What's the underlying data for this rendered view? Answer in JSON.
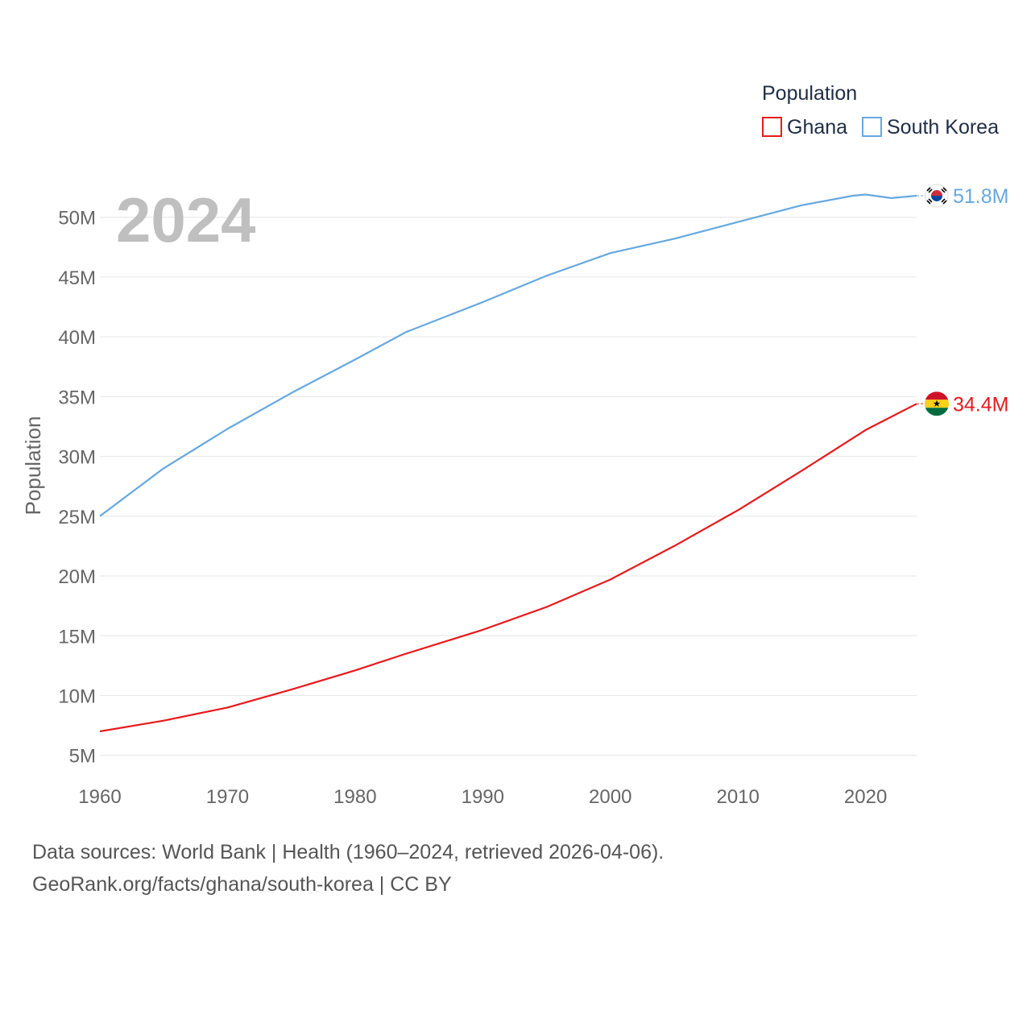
{
  "chart_data": {
    "type": "line",
    "year_overlay": "2024",
    "ylabel": "Population",
    "xlim": [
      1960,
      2024
    ],
    "ylim": [
      3.5,
      52
    ],
    "x_ticks": [
      {
        "value": 1960,
        "label": "1960"
      },
      {
        "value": 1970,
        "label": "1970"
      },
      {
        "value": 1980,
        "label": "1980"
      },
      {
        "value": 1990,
        "label": "1990"
      },
      {
        "value": 2000,
        "label": "2000"
      },
      {
        "value": 2010,
        "label": "2010"
      },
      {
        "value": 2020,
        "label": "2020"
      }
    ],
    "y_ticks": [
      {
        "value": 5,
        "label": "5M"
      },
      {
        "value": 10,
        "label": "10M"
      },
      {
        "value": 15,
        "label": "15M"
      },
      {
        "value": 20,
        "label": "20M"
      },
      {
        "value": 25,
        "label": "25M"
      },
      {
        "value": 30,
        "label": "30M"
      },
      {
        "value": 35,
        "label": "35M"
      },
      {
        "value": 40,
        "label": "40M"
      },
      {
        "value": 45,
        "label": "45M"
      },
      {
        "value": 50,
        "label": "50M"
      }
    ],
    "legend": {
      "title": "Population",
      "position": "top-right",
      "items": [
        {
          "name": "Ghana",
          "color": "#e8191c"
        },
        {
          "name": "South Korea",
          "color": "#66a8e0"
        }
      ]
    },
    "series": [
      {
        "name": "Ghana",
        "color": "#e8191c",
        "unit": "millions",
        "end_label": "34.4M",
        "flag_icon": "ghana-flag-icon",
        "points": [
          [
            1960,
            7.0
          ],
          [
            1965,
            7.9
          ],
          [
            1970,
            9.0
          ],
          [
            1975,
            10.5
          ],
          [
            1980,
            12.1
          ],
          [
            1984,
            13.5
          ],
          [
            1990,
            15.5
          ],
          [
            1995,
            17.4
          ],
          [
            2000,
            19.7
          ],
          [
            2005,
            22.5
          ],
          [
            2010,
            25.5
          ],
          [
            2015,
            28.8
          ],
          [
            2020,
            32.2
          ],
          [
            2024,
            34.4
          ]
        ]
      },
      {
        "name": "South Korea",
        "color": "#66a8e0",
        "unit": "millions",
        "end_label": "51.8M",
        "flag_icon": "south-korea-flag-icon",
        "points": [
          [
            1960,
            25.0
          ],
          [
            1965,
            29.0
          ],
          [
            1970,
            32.3
          ],
          [
            1975,
            35.3
          ],
          [
            1980,
            38.1
          ],
          [
            1984,
            40.4
          ],
          [
            1990,
            42.9
          ],
          [
            1995,
            45.1
          ],
          [
            2000,
            47.0
          ],
          [
            2005,
            48.2
          ],
          [
            2010,
            49.6
          ],
          [
            2015,
            51.0
          ],
          [
            2019,
            51.8
          ],
          [
            2020,
            51.9
          ],
          [
            2022,
            51.6
          ],
          [
            2024,
            51.8
          ]
        ]
      }
    ]
  },
  "footer": {
    "line1": "Data sources: World Bank | Health (1960–2024, retrieved 2026-04-06).",
    "line2": "GeoRank.org/facts/ghana/south-korea | CC BY"
  }
}
